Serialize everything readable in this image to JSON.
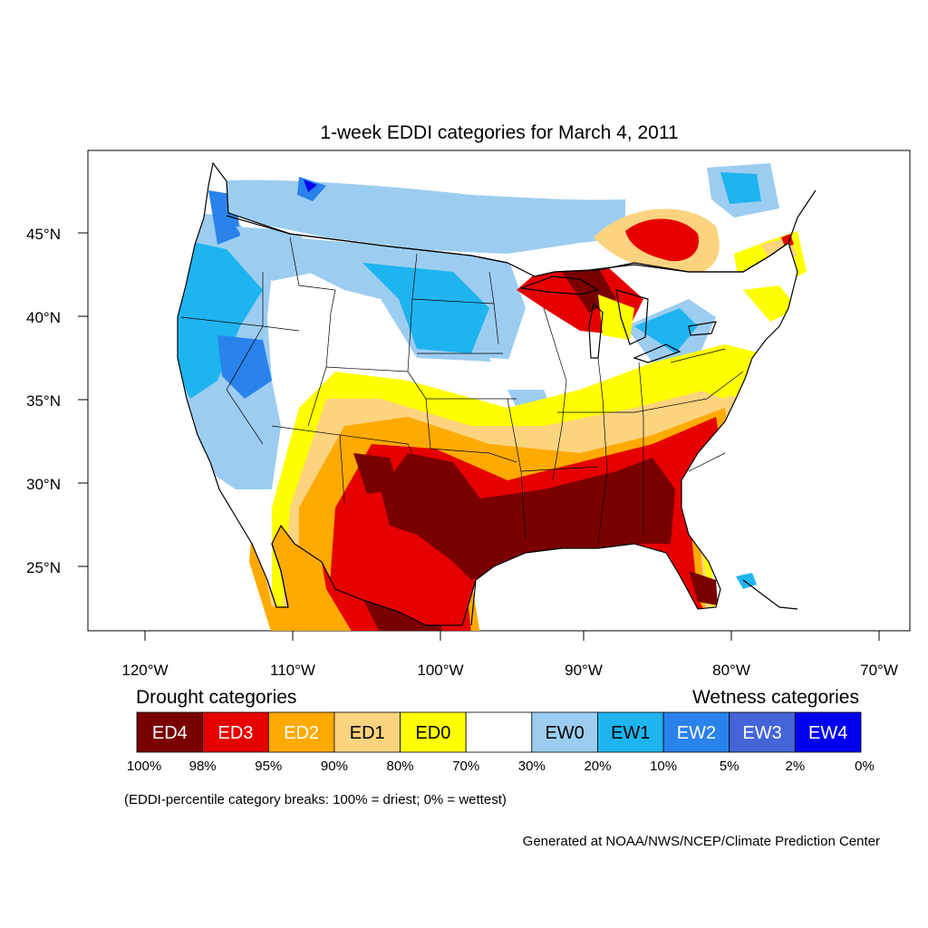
{
  "title": "1-week EDDI categories for March 4, 2011",
  "lat_labels": [
    "45°N",
    "40°N",
    "35°N",
    "30°N",
    "25°N"
  ],
  "lon_labels": [
    "120°W",
    "110°W",
    "100°W",
    "90°W",
    "80°W",
    "70°W"
  ],
  "legend": {
    "drought_heading": "Drought categories",
    "wetness_heading": "Wetness categories",
    "boxes": [
      {
        "label": "ED4",
        "color": "#7a0000",
        "text_color": "#ffffff"
      },
      {
        "label": "ED3",
        "color": "#e60000",
        "text_color": "#ffffff"
      },
      {
        "label": "ED2",
        "color": "#ffaa00",
        "text_color": "#ffffff"
      },
      {
        "label": "ED1",
        "color": "#fcd37f",
        "text_color": "#000000"
      },
      {
        "label": "ED0",
        "color": "#ffff00",
        "text_color": "#000000"
      },
      {
        "label": "",
        "color": "#ffffff",
        "text_color": "#000000"
      },
      {
        "label": "EW0",
        "color": "#9ccdf0",
        "text_color": "#000000"
      },
      {
        "label": "EW1",
        "color": "#1eb4f0",
        "text_color": "#000000"
      },
      {
        "label": "EW2",
        "color": "#2a82eb",
        "text_color": "#ffffff"
      },
      {
        "label": "EW3",
        "color": "#4564d7",
        "text_color": "#ffffff"
      },
      {
        "label": "EW4",
        "color": "#0000f0",
        "text_color": "#ffffff"
      }
    ],
    "percentiles": [
      "100%",
      "98%",
      "95%",
      "90%",
      "80%",
      "70%",
      "30%",
      "20%",
      "10%",
      "5%",
      "2%",
      "0%"
    ]
  },
  "note": "(EDDI-percentile category breaks: 100% = driest; 0% = wettest)",
  "credit": "Generated at NOAA/NWS/NCEP/Climate Prediction Center"
}
